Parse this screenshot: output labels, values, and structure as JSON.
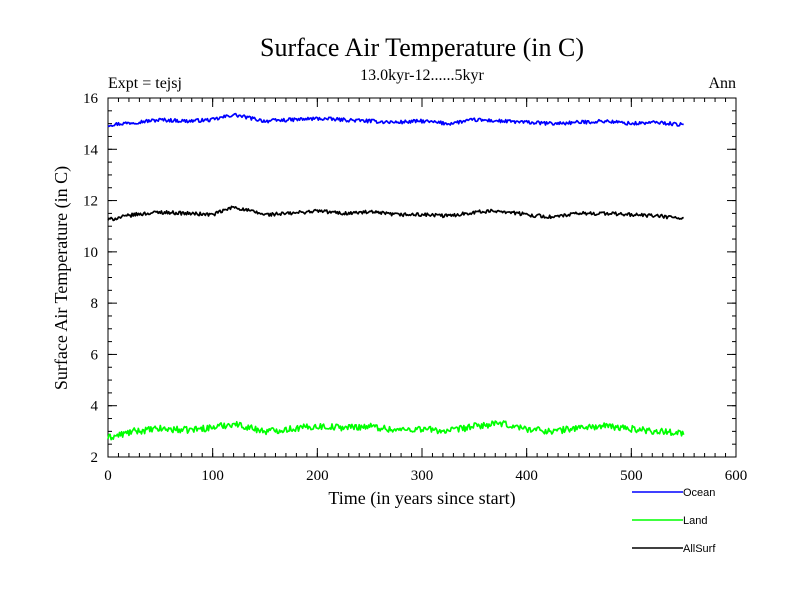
{
  "chart_data": {
    "type": "line",
    "title": "Surface Air Temperature (in C)",
    "subtitle": "13.0kyr-12......5kyr",
    "annotation_left": "Expt = tejsj",
    "annotation_right": "Ann",
    "xlabel": "Time (in years since start)",
    "ylabel": "Surface Air Temperature (in C)",
    "xlim": [
      0,
      600
    ],
    "ylim": [
      2,
      16
    ],
    "x_ticks": [
      0,
      100,
      200,
      300,
      400,
      500,
      600
    ],
    "y_ticks": [
      2,
      4,
      6,
      8,
      10,
      12,
      14,
      16
    ],
    "grid": false,
    "legend_position": "bottom-right, below plot",
    "x_range_of_series": [
      0,
      550
    ],
    "series": [
      {
        "name": "Ocean",
        "color": "#0000ff",
        "x": [
          0,
          25,
          50,
          75,
          100,
          120,
          150,
          175,
          200,
          225,
          250,
          275,
          300,
          325,
          350,
          375,
          400,
          425,
          450,
          475,
          500,
          525,
          550
        ],
        "values": [
          14.95,
          15.05,
          15.15,
          15.1,
          15.15,
          15.35,
          15.1,
          15.15,
          15.2,
          15.15,
          15.1,
          15.05,
          15.1,
          15.0,
          15.15,
          15.1,
          15.05,
          15.0,
          15.05,
          15.1,
          15.0,
          15.05,
          14.95
        ]
      },
      {
        "name": "Land",
        "color": "#00ff00",
        "x": [
          0,
          25,
          50,
          75,
          100,
          120,
          150,
          175,
          200,
          225,
          250,
          275,
          300,
          325,
          350,
          375,
          400,
          425,
          450,
          475,
          500,
          525,
          550
        ],
        "values": [
          2.75,
          3.0,
          3.1,
          3.05,
          3.15,
          3.3,
          3.0,
          3.1,
          3.2,
          3.15,
          3.2,
          3.05,
          3.1,
          3.0,
          3.2,
          3.3,
          3.1,
          3.0,
          3.15,
          3.2,
          3.1,
          3.0,
          2.95
        ]
      },
      {
        "name": "AllSurf",
        "color": "#000000",
        "x": [
          0,
          25,
          50,
          75,
          100,
          120,
          150,
          175,
          200,
          225,
          250,
          275,
          300,
          325,
          350,
          375,
          400,
          425,
          450,
          475,
          500,
          525,
          550
        ],
        "values": [
          11.25,
          11.45,
          11.55,
          11.5,
          11.45,
          11.75,
          11.45,
          11.5,
          11.6,
          11.5,
          11.55,
          11.45,
          11.45,
          11.4,
          11.55,
          11.6,
          11.45,
          11.35,
          11.5,
          11.5,
          11.45,
          11.4,
          11.3
        ]
      }
    ]
  }
}
